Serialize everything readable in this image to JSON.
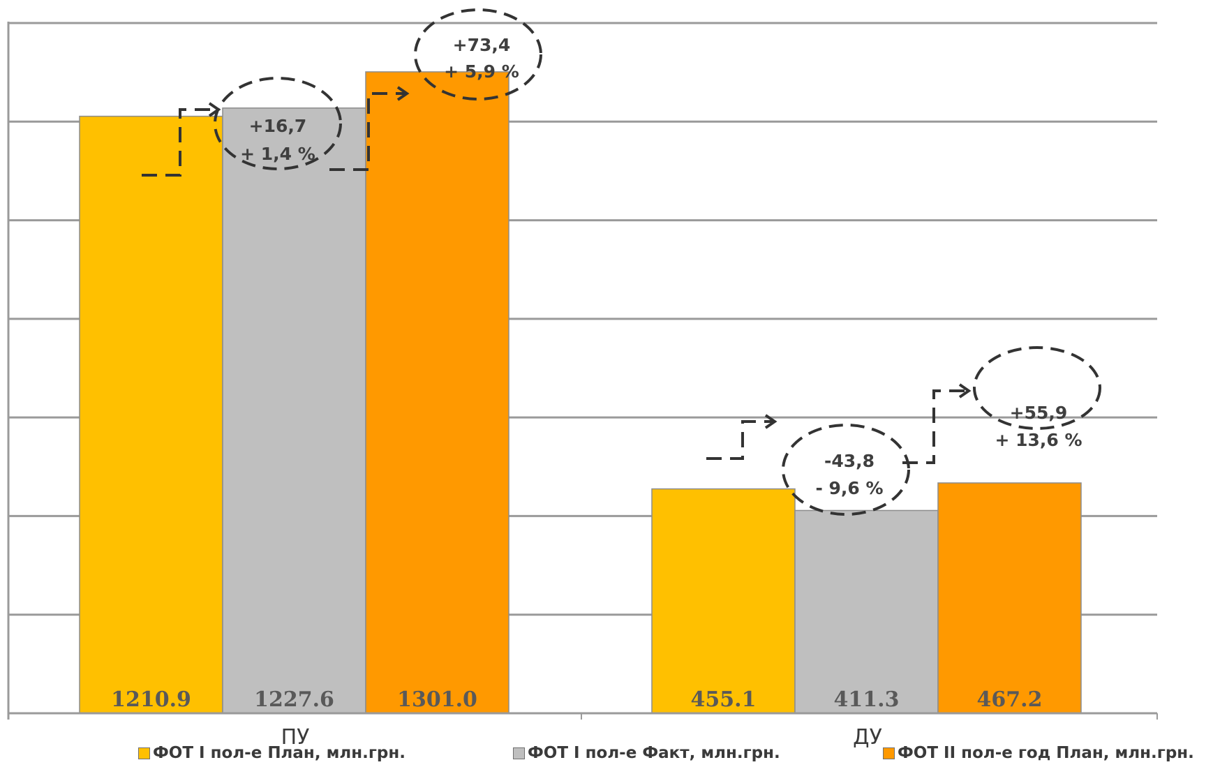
{
  "chart_data": {
    "type": "bar",
    "categories": [
      "ПУ",
      "ДУ"
    ],
    "series": [
      {
        "name": "ФОТ I пол-е План, млн.грн.",
        "values": [
          1210.9,
          455.1
        ],
        "labels": [
          "1210.9",
          "455.1"
        ],
        "color": "#FFC000"
      },
      {
        "name": "ФОТ I пол-е Факт, млн.грн.",
        "values": [
          1227.6,
          411.3
        ],
        "labels": [
          "1227.6",
          "411.3"
        ],
        "color": "#BFBFBF"
      },
      {
        "name": "ФОТ II пол-е год План, млн.грн.",
        "values": [
          1301.0,
          467.2
        ],
        "labels": [
          "1301.0",
          "467.2"
        ],
        "color": "#FF9900"
      }
    ],
    "ylim": [
      0,
      1400
    ],
    "grid": true,
    "legend": "bottom",
    "annotations": [
      {
        "category": "ПУ",
        "line1": "+16,7",
        "line2": "+ 1,4 %"
      },
      {
        "category": "ПУ",
        "line1": "+73,4",
        "line2": "+ 5,9 %"
      },
      {
        "category": "ДУ",
        "line1": "-43,8",
        "line2": "- 9,6 %"
      },
      {
        "category": "ДУ",
        "line1": "+55,9",
        "line2": "+ 13,6 %"
      }
    ]
  }
}
